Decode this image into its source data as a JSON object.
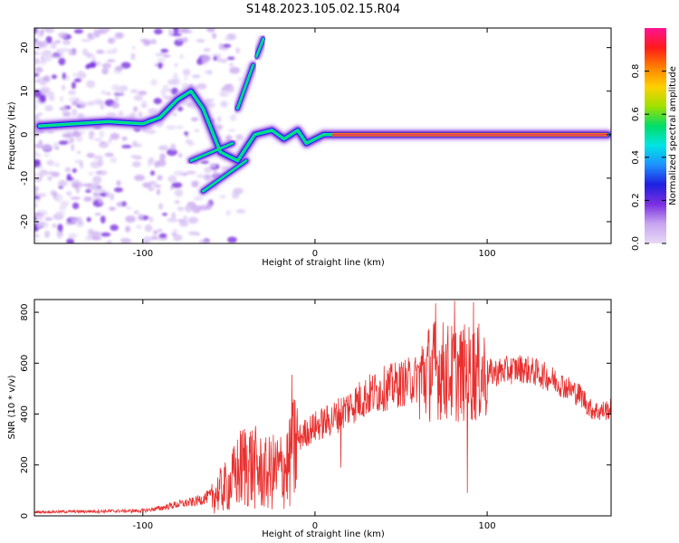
{
  "title": "S148.2023.105.02.15.R04",
  "colors": {
    "snr_line": "#e8302f",
    "ridge_core": "#e63e5f",
    "colormap": [
      "#e6d9f7",
      "#c8a6f0",
      "#7b2fe0",
      "#1f1fe0",
      "#1e90ff",
      "#00e5e5",
      "#00dd66",
      "#a0e000",
      "#ffd000",
      "#ff8000",
      "#ff1a1a",
      "#ff1493"
    ]
  },
  "chart_data": [
    {
      "type": "heatmap",
      "xlabel": "Height of straight line (km)",
      "ylabel": "Frequency (Hz)",
      "xlim": [
        -163,
        172
      ],
      "ylim": [
        -25,
        24.5
      ],
      "xticks": [
        -100,
        0,
        100
      ],
      "yticks": [
        -20,
        -10,
        0,
        10,
        20
      ],
      "colorbar": {
        "label": "Normalized spectral amplitude",
        "range": [
          0,
          1
        ],
        "ticks": [
          "0.0",
          "0.2",
          "0.4",
          "0.6",
          "0.8"
        ]
      },
      "ridge": [
        [
          -160,
          2
        ],
        [
          -140,
          2.5
        ],
        [
          -120,
          3
        ],
        [
          -100,
          2.5
        ],
        [
          -90,
          4
        ],
        [
          -80,
          8
        ],
        [
          -72,
          10
        ],
        [
          -65,
          6
        ],
        [
          -55,
          -4
        ],
        [
          -45,
          -6
        ],
        [
          -35,
          0
        ],
        [
          -25,
          1
        ],
        [
          -18,
          -1
        ],
        [
          -10,
          1
        ],
        [
          -5,
          -2
        ],
        [
          0,
          -1
        ],
        [
          5,
          0
        ],
        [
          10,
          0
        ],
        [
          50,
          0
        ],
        [
          100,
          0
        ],
        [
          170,
          0
        ]
      ],
      "branches": [
        {
          "from": [
            -72,
            -6
          ],
          "to": [
            -48,
            -2
          ]
        },
        {
          "from": [
            -65,
            -13
          ],
          "to": [
            -40,
            -6
          ]
        },
        {
          "from": [
            -45,
            6
          ],
          "to": [
            -36,
            16
          ]
        },
        {
          "from": [
            -34,
            18
          ],
          "to": [
            -30,
            22
          ]
        }
      ]
    },
    {
      "type": "line",
      "xlabel": "Height of straight line (km)",
      "ylabel": "SNR (10 * v/v)",
      "xlim": [
        -163,
        172
      ],
      "ylim": [
        0,
        850
      ],
      "xticks": [
        -100,
        0,
        100
      ],
      "yticks": [
        0,
        200,
        400,
        600,
        800
      ],
      "envelope": {
        "x": [
          -163,
          -100,
          -90,
          -80,
          -70,
          -60,
          -50,
          -45,
          -40,
          -35,
          -30,
          -25,
          -20,
          -15,
          -10,
          -5,
          0,
          10,
          20,
          30,
          40,
          50,
          60,
          70,
          80,
          90,
          100,
          110,
          120,
          130,
          140,
          150,
          155,
          160,
          165,
          172
        ],
        "y": [
          15,
          20,
          30,
          45,
          55,
          80,
          120,
          170,
          210,
          190,
          160,
          170,
          180,
          200,
          300,
          330,
          350,
          380,
          430,
          470,
          500,
          520,
          540,
          580,
          560,
          560,
          560,
          570,
          580,
          560,
          530,
          490,
          470,
          420,
          410,
          420
        ]
      },
      "spikes": [
        {
          "x": -13.5,
          "y": 555
        },
        {
          "x": 70,
          "y": 835
        },
        {
          "x": 81,
          "y": 845
        },
        {
          "x": 88.5,
          "y": 90
        },
        {
          "x": 92,
          "y": 840
        },
        {
          "x": 15,
          "y": 190
        }
      ]
    }
  ]
}
